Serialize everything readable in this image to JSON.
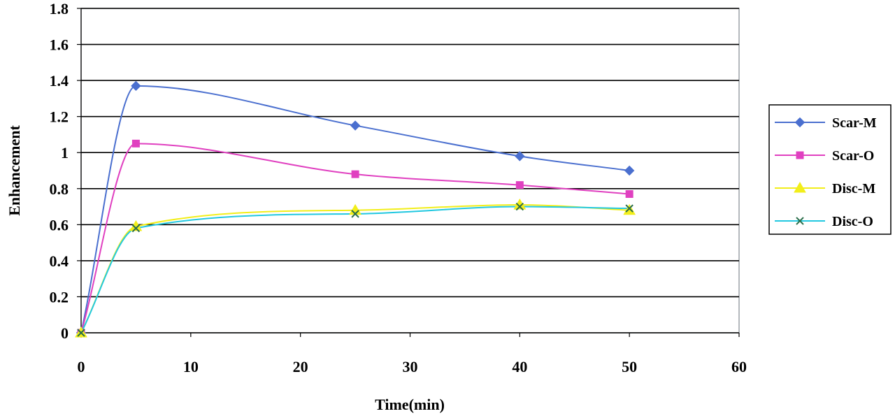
{
  "chart_data": {
    "type": "line",
    "title": "",
    "xlabel": "Time(min)",
    "ylabel": "Enhancement",
    "xlim": [
      0,
      60
    ],
    "ylim": [
      0,
      1.8
    ],
    "xticks": [
      "0",
      "10",
      "20",
      "30",
      "40",
      "50",
      "60"
    ],
    "yticks": [
      "0",
      "0.2",
      "0.4",
      "0.6",
      "0.8",
      "1",
      "1.2",
      "1.4",
      "1.6",
      "1.8"
    ],
    "grid": "horizontal",
    "smooth": true,
    "legend_position": "right",
    "x": [
      0,
      5,
      25,
      40,
      50
    ],
    "series": [
      {
        "name": "Scar-M",
        "color": "#4a6fcf",
        "marker": "diamond",
        "values": [
          0,
          1.37,
          1.15,
          0.98,
          0.9
        ]
      },
      {
        "name": "Scar-O",
        "color": "#e040c0",
        "marker": "square",
        "values": [
          0,
          1.05,
          0.88,
          0.82,
          0.77
        ]
      },
      {
        "name": "Disc-M",
        "color": "#f2ee1a",
        "marker": "triangle",
        "values": [
          0,
          0.59,
          0.68,
          0.71,
          0.68
        ]
      },
      {
        "name": "Disc-O",
        "color": "#22c8e0",
        "marker": "x",
        "values": [
          0,
          0.58,
          0.66,
          0.7,
          0.69
        ]
      }
    ]
  }
}
